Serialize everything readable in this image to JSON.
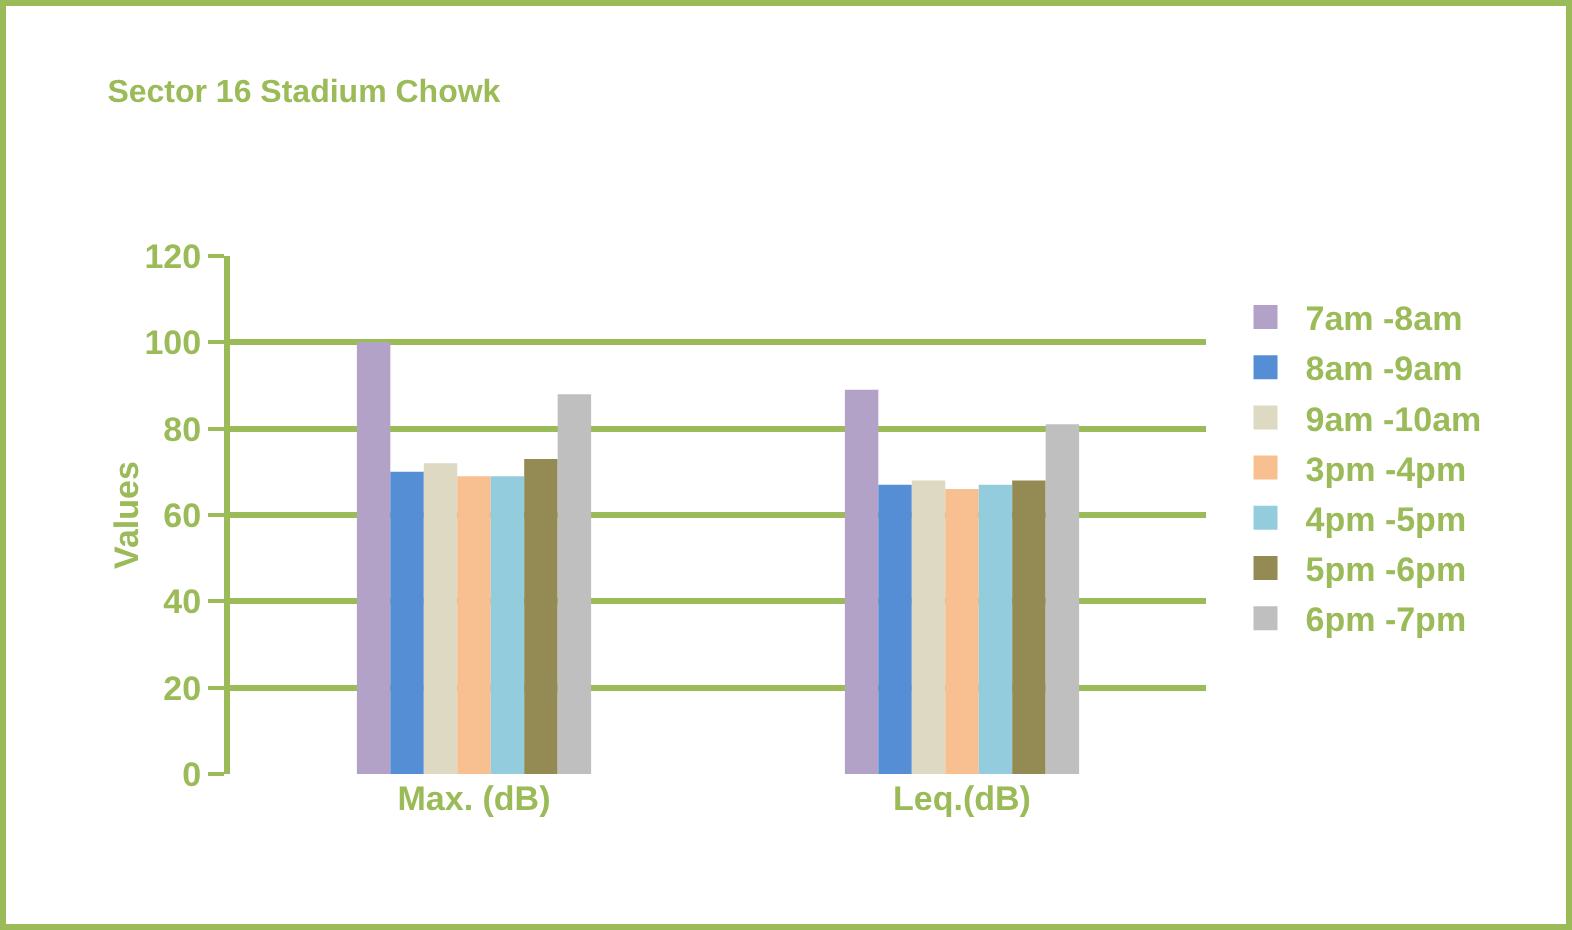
{
  "chart_data": {
    "type": "bar",
    "title": "Sector 16 Stadium Chowk",
    "ylabel": "Values",
    "categories": [
      "Max. (dB)",
      "Leq.(dB)"
    ],
    "series": [
      {
        "name": "7am -8am",
        "color": "#b3a2c7",
        "values": [
          100,
          89
        ]
      },
      {
        "name": "8am -9am",
        "color": "#558ed5",
        "values": [
          70,
          67
        ]
      },
      {
        "name": "9am -10am",
        "color": "#ddd9c3",
        "values": [
          72,
          68
        ]
      },
      {
        "name": "3pm -4pm",
        "color": "#f8c090",
        "values": [
          69,
          66
        ]
      },
      {
        "name": "4pm -5pm",
        "color": "#93cddd",
        "values": [
          69,
          67
        ]
      },
      {
        "name": "5pm -6pm",
        "color": "#948a54",
        "values": [
          73,
          68
        ]
      },
      {
        "name": "6pm -7pm",
        "color": "#bfbfbf",
        "values": [
          88,
          81
        ]
      }
    ],
    "ylim": [
      0,
      120
    ],
    "yticks": [
      0,
      20,
      40,
      60,
      80,
      100,
      120
    ],
    "grid": "y",
    "legend": "right"
  }
}
